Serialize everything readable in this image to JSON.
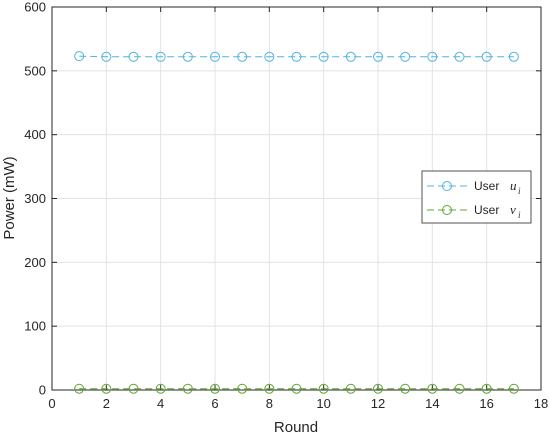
{
  "chart_data": {
    "type": "line",
    "xlabel": "Round",
    "ylabel": "Power (mW)",
    "xlim": [
      0,
      18
    ],
    "ylim": [
      0,
      600
    ],
    "xticks": [
      0,
      2,
      4,
      6,
      8,
      10,
      12,
      14,
      16,
      18
    ],
    "yticks": [
      0,
      100,
      200,
      300,
      400,
      500,
      600
    ],
    "grid": true,
    "legend_position": "right",
    "x": [
      1,
      2,
      3,
      4,
      5,
      6,
      7,
      8,
      9,
      10,
      11,
      12,
      13,
      14,
      15,
      16,
      17
    ],
    "series": [
      {
        "name": "User",
        "symbol": "u",
        "subscript": "i",
        "color": "#4fb3e0",
        "marker": "circle",
        "line": "dashed",
        "values": [
          523,
          522,
          522,
          522,
          522,
          522,
          522,
          522,
          522,
          522,
          522,
          522,
          522,
          522,
          522,
          522,
          522
        ]
      },
      {
        "name": "User",
        "symbol": "v",
        "subscript": "i",
        "color": "#5fa52e",
        "marker": "circle",
        "line": "dashed",
        "values": [
          2,
          2,
          2,
          2,
          2,
          2,
          2,
          2,
          2,
          2,
          2,
          2,
          2,
          2,
          2,
          2,
          2
        ]
      }
    ]
  }
}
